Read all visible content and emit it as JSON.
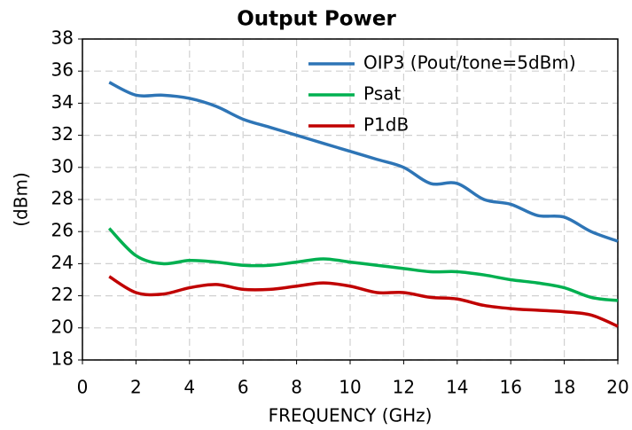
{
  "chart_data": {
    "type": "line",
    "title": "Output Power",
    "x_label": "FREQUENCY (GHz)",
    "y_label": "(dBm)",
    "x": [
      1,
      2,
      3,
      4,
      5,
      6,
      7,
      8,
      9,
      10,
      11,
      12,
      13,
      14,
      15,
      16,
      17,
      18,
      19,
      20
    ],
    "series": [
      {
        "name": "OIP3 (Pout/tone=5dBm)",
        "color": "#2e75b6",
        "values": [
          35.3,
          34.5,
          34.5,
          34.3,
          33.8,
          33.0,
          32.5,
          32.0,
          31.5,
          31.0,
          30.5,
          30.0,
          29.0,
          29.0,
          28.0,
          27.7,
          27.0,
          26.9,
          26.0,
          25.4
        ]
      },
      {
        "name": "Psat",
        "color": "#00b050",
        "values": [
          26.2,
          24.5,
          24.0,
          24.2,
          24.1,
          23.9,
          23.9,
          24.1,
          24.3,
          24.1,
          23.9,
          23.7,
          23.5,
          23.5,
          23.3,
          23.0,
          22.8,
          22.5,
          21.9,
          21.7
        ]
      },
      {
        "name": "P1dB",
        "color": "#c00000",
        "values": [
          23.2,
          22.2,
          22.1,
          22.5,
          22.7,
          22.4,
          22.4,
          22.6,
          22.8,
          22.6,
          22.2,
          22.2,
          21.9,
          21.8,
          21.4,
          21.2,
          21.1,
          21.0,
          20.8,
          20.1
        ]
      }
    ],
    "xlim": [
      0,
      20
    ],
    "xticks": [
      0,
      2,
      4,
      6,
      8,
      10,
      12,
      14,
      16,
      18,
      20
    ],
    "ylim": [
      18,
      38
    ],
    "yticks": [
      18,
      20,
      22,
      24,
      26,
      28,
      30,
      32,
      34,
      36,
      38
    ],
    "grid": true,
    "legend": "upper right"
  }
}
